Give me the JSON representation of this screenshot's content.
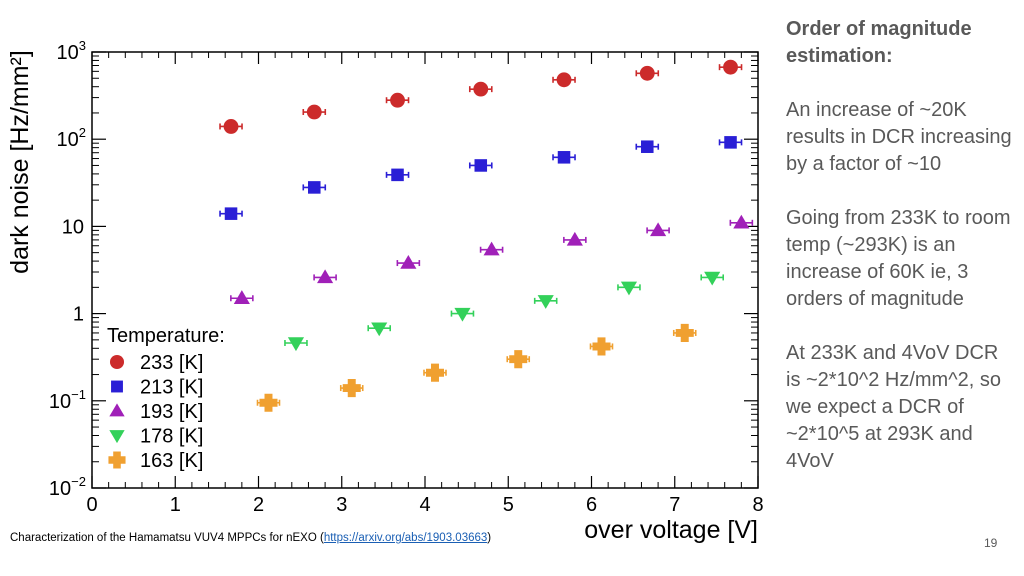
{
  "chart_data": {
    "type": "scatter",
    "xlabel": "over voltage [V]",
    "ylabel": "dark noise [Hz/mm²]",
    "xlim": [
      0,
      8
    ],
    "ylim": [
      0.01,
      1000
    ],
    "yscale": "log",
    "x_ticks": [
      "0",
      "1",
      "2",
      "3",
      "4",
      "5",
      "6",
      "7",
      "8"
    ],
    "y_ticks": [
      {
        "base": "10",
        "exp": "3"
      },
      {
        "base": "10",
        "exp": "2"
      },
      {
        "base": "10",
        "exp": ""
      },
      {
        "base": "1",
        "exp": ""
      },
      {
        "base": "10",
        "exp": "−1"
      },
      {
        "base": "10",
        "exp": "−2"
      }
    ],
    "legend_title": "Temperature:",
    "legend_position": "bottom-left",
    "series": [
      {
        "name": "233 [K]",
        "marker": "circle",
        "color": "#cc2b2b",
        "x": [
          1.67,
          2.67,
          3.67,
          4.67,
          5.67,
          6.67,
          7.67
        ],
        "y": [
          140,
          205,
          280,
          375,
          480,
          570,
          670
        ]
      },
      {
        "name": "213 [K]",
        "marker": "square",
        "color": "#2a1fd6",
        "x": [
          1.67,
          2.67,
          3.67,
          4.67,
          5.67,
          6.67,
          7.67
        ],
        "y": [
          14,
          28,
          39,
          50,
          62,
          82,
          92
        ]
      },
      {
        "name": "193 [K]",
        "marker": "triangle-up",
        "color": "#a020b8",
        "x": [
          1.8,
          2.8,
          3.8,
          4.8,
          5.8,
          6.8,
          7.8
        ],
        "y": [
          1.5,
          2.6,
          3.8,
          5.4,
          7.0,
          9.0,
          11
        ]
      },
      {
        "name": "178 [K]",
        "marker": "triangle-down",
        "color": "#33d15a",
        "x": [
          2.45,
          3.45,
          4.45,
          5.45,
          6.45,
          7.45
        ],
        "y": [
          0.46,
          0.68,
          1.0,
          1.4,
          2.0,
          2.6
        ]
      },
      {
        "name": "163 [K]",
        "marker": "cross",
        "color": "#f0a030",
        "x": [
          2.12,
          3.12,
          4.12,
          5.12,
          6.12,
          7.12
        ],
        "y": [
          0.095,
          0.14,
          0.21,
          0.3,
          0.42,
          0.6
        ]
      }
    ]
  },
  "side_panel": {
    "heading": "Order of magnitude estimation:",
    "paragraphs": [
      "An increase of ~20K results in DCR increasing by a factor of ~10",
      "Going from 233K to room temp (~293K) is an increase of 60K ie, 3 orders of magnitude",
      "At 233K and 4VoV DCR is ~2*10^2 Hz/mm^2, so we expect a DCR of ~2*10^5 at 293K and 4VoV"
    ]
  },
  "caption": {
    "text_before": "Characterization of the Hamamatsu VUV4 MPPCs for nEXO (",
    "link": "https://arxiv.org/abs/1903.03663",
    "text_after": ")"
  },
  "slide_number": "19"
}
